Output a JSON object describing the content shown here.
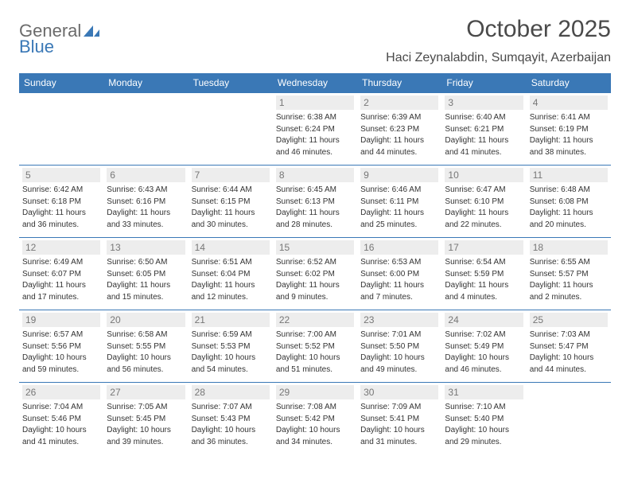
{
  "brand": {
    "word1": "General",
    "word2": "Blue"
  },
  "title": "October 2025",
  "location": "Haci Zeynalabdin, Sumqayit, Azerbaijan",
  "colors": {
    "accent": "#3a78b6",
    "text": "#333333",
    "muted": "#6b6b6b",
    "daybg": "#ededed"
  },
  "daysOfWeek": [
    "Sunday",
    "Monday",
    "Tuesday",
    "Wednesday",
    "Thursday",
    "Friday",
    "Saturday"
  ],
  "weeks": [
    [
      null,
      null,
      null,
      {
        "n": "1",
        "sr": "Sunrise: 6:38 AM",
        "ss": "Sunset: 6:24 PM",
        "d1": "Daylight: 11 hours",
        "d2": "and 46 minutes."
      },
      {
        "n": "2",
        "sr": "Sunrise: 6:39 AM",
        "ss": "Sunset: 6:23 PM",
        "d1": "Daylight: 11 hours",
        "d2": "and 44 minutes."
      },
      {
        "n": "3",
        "sr": "Sunrise: 6:40 AM",
        "ss": "Sunset: 6:21 PM",
        "d1": "Daylight: 11 hours",
        "d2": "and 41 minutes."
      },
      {
        "n": "4",
        "sr": "Sunrise: 6:41 AM",
        "ss": "Sunset: 6:19 PM",
        "d1": "Daylight: 11 hours",
        "d2": "and 38 minutes."
      }
    ],
    [
      {
        "n": "5",
        "sr": "Sunrise: 6:42 AM",
        "ss": "Sunset: 6:18 PM",
        "d1": "Daylight: 11 hours",
        "d2": "and 36 minutes."
      },
      {
        "n": "6",
        "sr": "Sunrise: 6:43 AM",
        "ss": "Sunset: 6:16 PM",
        "d1": "Daylight: 11 hours",
        "d2": "and 33 minutes."
      },
      {
        "n": "7",
        "sr": "Sunrise: 6:44 AM",
        "ss": "Sunset: 6:15 PM",
        "d1": "Daylight: 11 hours",
        "d2": "and 30 minutes."
      },
      {
        "n": "8",
        "sr": "Sunrise: 6:45 AM",
        "ss": "Sunset: 6:13 PM",
        "d1": "Daylight: 11 hours",
        "d2": "and 28 minutes."
      },
      {
        "n": "9",
        "sr": "Sunrise: 6:46 AM",
        "ss": "Sunset: 6:11 PM",
        "d1": "Daylight: 11 hours",
        "d2": "and 25 minutes."
      },
      {
        "n": "10",
        "sr": "Sunrise: 6:47 AM",
        "ss": "Sunset: 6:10 PM",
        "d1": "Daylight: 11 hours",
        "d2": "and 22 minutes."
      },
      {
        "n": "11",
        "sr": "Sunrise: 6:48 AM",
        "ss": "Sunset: 6:08 PM",
        "d1": "Daylight: 11 hours",
        "d2": "and 20 minutes."
      }
    ],
    [
      {
        "n": "12",
        "sr": "Sunrise: 6:49 AM",
        "ss": "Sunset: 6:07 PM",
        "d1": "Daylight: 11 hours",
        "d2": "and 17 minutes."
      },
      {
        "n": "13",
        "sr": "Sunrise: 6:50 AM",
        "ss": "Sunset: 6:05 PM",
        "d1": "Daylight: 11 hours",
        "d2": "and 15 minutes."
      },
      {
        "n": "14",
        "sr": "Sunrise: 6:51 AM",
        "ss": "Sunset: 6:04 PM",
        "d1": "Daylight: 11 hours",
        "d2": "and 12 minutes."
      },
      {
        "n": "15",
        "sr": "Sunrise: 6:52 AM",
        "ss": "Sunset: 6:02 PM",
        "d1": "Daylight: 11 hours",
        "d2": "and 9 minutes."
      },
      {
        "n": "16",
        "sr": "Sunrise: 6:53 AM",
        "ss": "Sunset: 6:00 PM",
        "d1": "Daylight: 11 hours",
        "d2": "and 7 minutes."
      },
      {
        "n": "17",
        "sr": "Sunrise: 6:54 AM",
        "ss": "Sunset: 5:59 PM",
        "d1": "Daylight: 11 hours",
        "d2": "and 4 minutes."
      },
      {
        "n": "18",
        "sr": "Sunrise: 6:55 AM",
        "ss": "Sunset: 5:57 PM",
        "d1": "Daylight: 11 hours",
        "d2": "and 2 minutes."
      }
    ],
    [
      {
        "n": "19",
        "sr": "Sunrise: 6:57 AM",
        "ss": "Sunset: 5:56 PM",
        "d1": "Daylight: 10 hours",
        "d2": "and 59 minutes."
      },
      {
        "n": "20",
        "sr": "Sunrise: 6:58 AM",
        "ss": "Sunset: 5:55 PM",
        "d1": "Daylight: 10 hours",
        "d2": "and 56 minutes."
      },
      {
        "n": "21",
        "sr": "Sunrise: 6:59 AM",
        "ss": "Sunset: 5:53 PM",
        "d1": "Daylight: 10 hours",
        "d2": "and 54 minutes."
      },
      {
        "n": "22",
        "sr": "Sunrise: 7:00 AM",
        "ss": "Sunset: 5:52 PM",
        "d1": "Daylight: 10 hours",
        "d2": "and 51 minutes."
      },
      {
        "n": "23",
        "sr": "Sunrise: 7:01 AM",
        "ss": "Sunset: 5:50 PM",
        "d1": "Daylight: 10 hours",
        "d2": "and 49 minutes."
      },
      {
        "n": "24",
        "sr": "Sunrise: 7:02 AM",
        "ss": "Sunset: 5:49 PM",
        "d1": "Daylight: 10 hours",
        "d2": "and 46 minutes."
      },
      {
        "n": "25",
        "sr": "Sunrise: 7:03 AM",
        "ss": "Sunset: 5:47 PM",
        "d1": "Daylight: 10 hours",
        "d2": "and 44 minutes."
      }
    ],
    [
      {
        "n": "26",
        "sr": "Sunrise: 7:04 AM",
        "ss": "Sunset: 5:46 PM",
        "d1": "Daylight: 10 hours",
        "d2": "and 41 minutes."
      },
      {
        "n": "27",
        "sr": "Sunrise: 7:05 AM",
        "ss": "Sunset: 5:45 PM",
        "d1": "Daylight: 10 hours",
        "d2": "and 39 minutes."
      },
      {
        "n": "28",
        "sr": "Sunrise: 7:07 AM",
        "ss": "Sunset: 5:43 PM",
        "d1": "Daylight: 10 hours",
        "d2": "and 36 minutes."
      },
      {
        "n": "29",
        "sr": "Sunrise: 7:08 AM",
        "ss": "Sunset: 5:42 PM",
        "d1": "Daylight: 10 hours",
        "d2": "and 34 minutes."
      },
      {
        "n": "30",
        "sr": "Sunrise: 7:09 AM",
        "ss": "Sunset: 5:41 PM",
        "d1": "Daylight: 10 hours",
        "d2": "and 31 minutes."
      },
      {
        "n": "31",
        "sr": "Sunrise: 7:10 AM",
        "ss": "Sunset: 5:40 PM",
        "d1": "Daylight: 10 hours",
        "d2": "and 29 minutes."
      },
      null
    ]
  ]
}
